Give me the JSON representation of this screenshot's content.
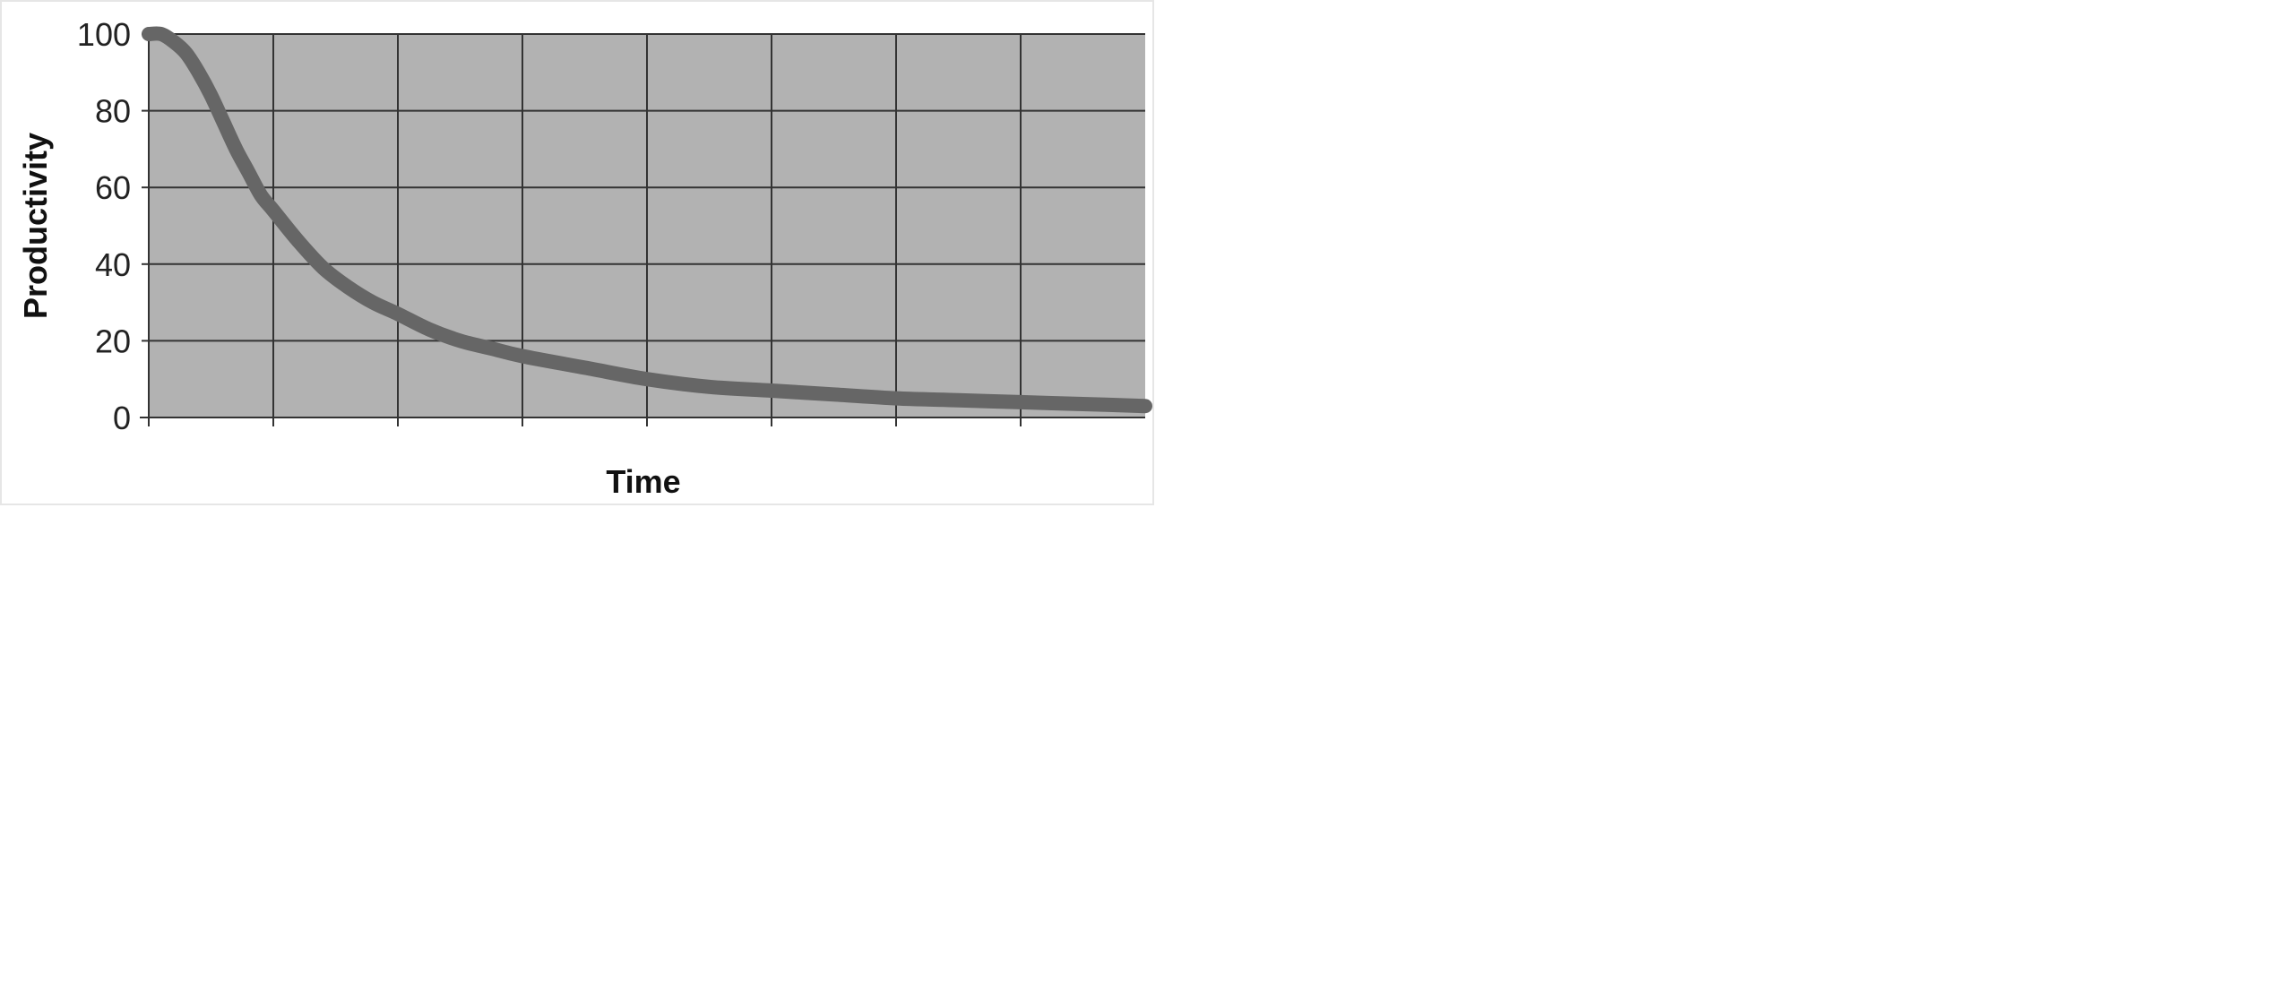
{
  "chart_data": {
    "type": "line",
    "xlabel": "Time",
    "ylabel": "Productivity",
    "ylim": [
      0,
      100
    ],
    "yticks": [
      0,
      20,
      40,
      60,
      80,
      100
    ],
    "xlim": [
      0,
      8
    ],
    "x_ticks_count": 8,
    "grid": true,
    "legend": "none",
    "series": [
      {
        "x": [
          0,
          0.1,
          0.2,
          0.3,
          0.4,
          0.5,
          0.6,
          0.7,
          0.8,
          0.9,
          1.0,
          1.2,
          1.4,
          1.6,
          1.8,
          2.0,
          2.25,
          2.5,
          2.75,
          3.0,
          3.5,
          4.0,
          4.5,
          5.0,
          5.5,
          6.0,
          6.5,
          7.0,
          7.5,
          8.0
        ],
        "values": [
          100,
          100,
          98,
          95,
          90,
          84,
          77,
          70,
          64,
          58,
          54,
          46,
          39,
          34,
          30,
          27,
          23,
          20,
          18,
          16,
          13,
          10,
          8,
          7,
          6,
          5,
          4.5,
          4,
          3.5,
          3
        ]
      }
    ],
    "colors": {
      "plot_background": "#b2b2b2",
      "gridline": "#333333",
      "line": "#666666"
    }
  }
}
